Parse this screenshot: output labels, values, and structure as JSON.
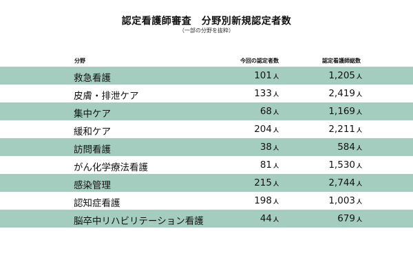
{
  "title": "認定看護師審査　分野別新規認定者数",
  "subtitle": "（一部の分野を抜粋）",
  "columns": {
    "field": "分野",
    "current": "今回の認定者数",
    "total": "認定看護師総数"
  },
  "unit": "人",
  "colors": {
    "row_shade": "#a4cdbf",
    "row_plain": "#ffffff"
  },
  "rows": [
    {
      "field": "救急看護",
      "current": "101",
      "total": "1,205"
    },
    {
      "field": "皮膚・排泄ケア",
      "current": "133",
      "total": "2,419"
    },
    {
      "field": "集中ケア",
      "current": "68",
      "total": "1,169"
    },
    {
      "field": "緩和ケア",
      "current": "204",
      "total": "2,211"
    },
    {
      "field": "訪問看護",
      "current": "38",
      "total": "584"
    },
    {
      "field": "がん化学療法看護",
      "current": "81",
      "total": "1,530"
    },
    {
      "field": "感染管理",
      "current": "215",
      "total": "2,744"
    },
    {
      "field": "認知症看護",
      "current": "198",
      "total": "1,003"
    },
    {
      "field": "脳卒中リハビリテーション看護",
      "current": "44",
      "total": "679"
    }
  ]
}
